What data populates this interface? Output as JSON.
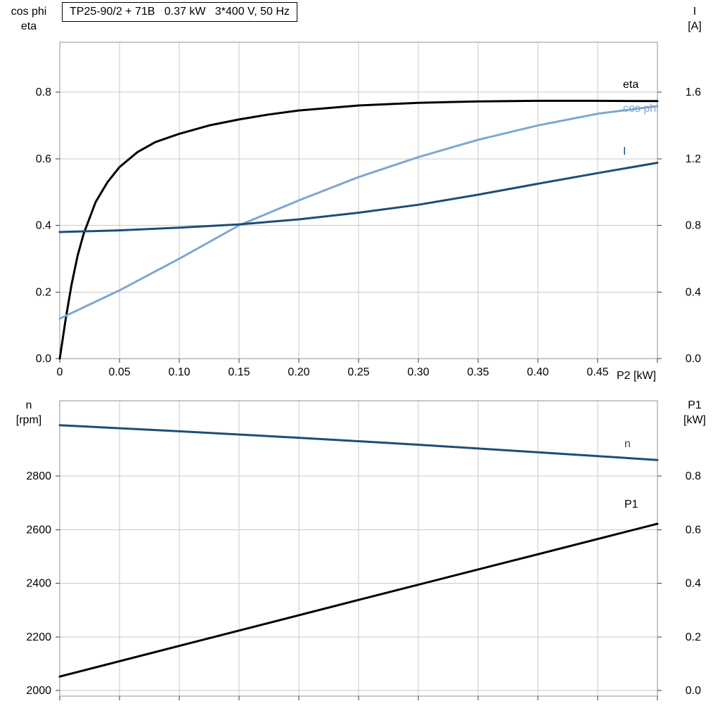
{
  "theme": {
    "background": "#ffffff",
    "grid": "#c9c9c9",
    "frame": "#919191",
    "tick": "#3a3a3a",
    "text": "#000000",
    "curve_black": "#000000",
    "curve_dark_blue": "#1d4d77",
    "curve_light_blue": "#7ea7cd"
  },
  "chart_data": [
    {
      "type": "line",
      "title": "TP25-90/2 + 71B   0.37 kW   3*400 V, 50 Hz",
      "ylabel_left_lines": [
        "cos phi",
        "eta"
      ],
      "ylabel_right_lines": [
        "I",
        "[A]"
      ],
      "xlabel": "P2 [kW]",
      "xlim": [
        0,
        0.5
      ],
      "xticks": [
        0,
        0.05,
        0.1,
        0.15,
        0.2,
        0.25,
        0.3,
        0.35,
        0.4,
        0.45,
        0.5
      ],
      "xtick_labels": [
        "0",
        "0.05",
        "0.10",
        "0.15",
        "0.20",
        "0.25",
        "0.30",
        "0.35",
        "0.40",
        "0.45",
        ""
      ],
      "ylim_left": [
        0,
        0.95
      ],
      "yticks_left": [
        0,
        0.2,
        0.4,
        0.6,
        0.8
      ],
      "ytick_labels_left": [
        "0.0",
        "0.2",
        "0.4",
        "0.6",
        "0.8"
      ],
      "ylim_right": [
        0,
        1.9
      ],
      "yticks_right": [
        0,
        0.4,
        0.8,
        1.2,
        1.6
      ],
      "ytick_labels_right": [
        "0.0",
        "0.4",
        "0.8",
        "1.2",
        "1.6"
      ],
      "grid": true,
      "legend_position": "right-inside",
      "series": [
        {
          "name": "eta",
          "axis": "left",
          "color": "#000000",
          "x": [
            0,
            0.005,
            0.01,
            0.015,
            0.02,
            0.03,
            0.04,
            0.05,
            0.065,
            0.08,
            0.1,
            0.125,
            0.15,
            0.175,
            0.2,
            0.25,
            0.3,
            0.35,
            0.4,
            0.45,
            0.5
          ],
          "y": [
            0,
            0.12,
            0.225,
            0.31,
            0.375,
            0.47,
            0.53,
            0.575,
            0.62,
            0.65,
            0.675,
            0.7,
            0.718,
            0.733,
            0.745,
            0.76,
            0.768,
            0.772,
            0.774,
            0.774,
            0.773
          ]
        },
        {
          "name": "cos phi",
          "axis": "left",
          "color": "#7ea7cd",
          "x": [
            0,
            0.05,
            0.1,
            0.15,
            0.2,
            0.25,
            0.3,
            0.35,
            0.4,
            0.45,
            0.5
          ],
          "y": [
            0.12,
            0.205,
            0.3,
            0.4,
            0.475,
            0.545,
            0.605,
            0.657,
            0.7,
            0.735,
            0.758
          ]
        },
        {
          "name": "I",
          "axis": "right",
          "color": "#1d4d77",
          "x": [
            0,
            0.05,
            0.1,
            0.15,
            0.2,
            0.25,
            0.3,
            0.35,
            0.4,
            0.45,
            0.5
          ],
          "y": [
            0.76,
            0.77,
            0.786,
            0.806,
            0.836,
            0.876,
            0.924,
            0.984,
            1.05,
            1.114,
            1.176
          ]
        }
      ]
    },
    {
      "type": "line",
      "title": "",
      "ylabel_left_lines": [
        "n",
        "[rpm]"
      ],
      "ylabel_right_lines": [
        "P1",
        "[kW]"
      ],
      "xlabel": "",
      "xlim": [
        0,
        0.5
      ],
      "xticks": [
        0,
        0.05,
        0.1,
        0.15,
        0.2,
        0.25,
        0.3,
        0.35,
        0.4,
        0.45,
        0.5
      ],
      "xtick_labels": [
        "",
        "",
        "",
        "",
        "",
        "",
        "",
        "",
        "",
        "",
        ""
      ],
      "ylim_left": [
        1979,
        3081
      ],
      "yticks_left": [
        2000,
        2200,
        2400,
        2600,
        2800
      ],
      "ytick_labels_left": [
        "2000",
        "2200",
        "2400",
        "2600",
        "2800"
      ],
      "ylim_right": [
        -0.021,
        1.081
      ],
      "yticks_right": [
        0,
        0.2,
        0.4,
        0.6,
        0.8
      ],
      "ytick_labels_right": [
        "0.0",
        "0.2",
        "0.4",
        "0.6",
        "0.8"
      ],
      "grid": true,
      "legend_position": "right-inside",
      "series": [
        {
          "name": "n",
          "axis": "left",
          "color": "#1d4d77",
          "x": [
            0,
            0.1,
            0.2,
            0.3,
            0.4,
            0.5
          ],
          "y": [
            2990,
            2967,
            2943,
            2917,
            2889,
            2860
          ]
        },
        {
          "name": "P1",
          "axis": "right",
          "color": "#000000",
          "x": [
            0,
            0.125,
            0.25,
            0.375,
            0.5
          ],
          "y": [
            0.052,
            0.195,
            0.338,
            0.48,
            0.622
          ]
        }
      ]
    }
  ]
}
